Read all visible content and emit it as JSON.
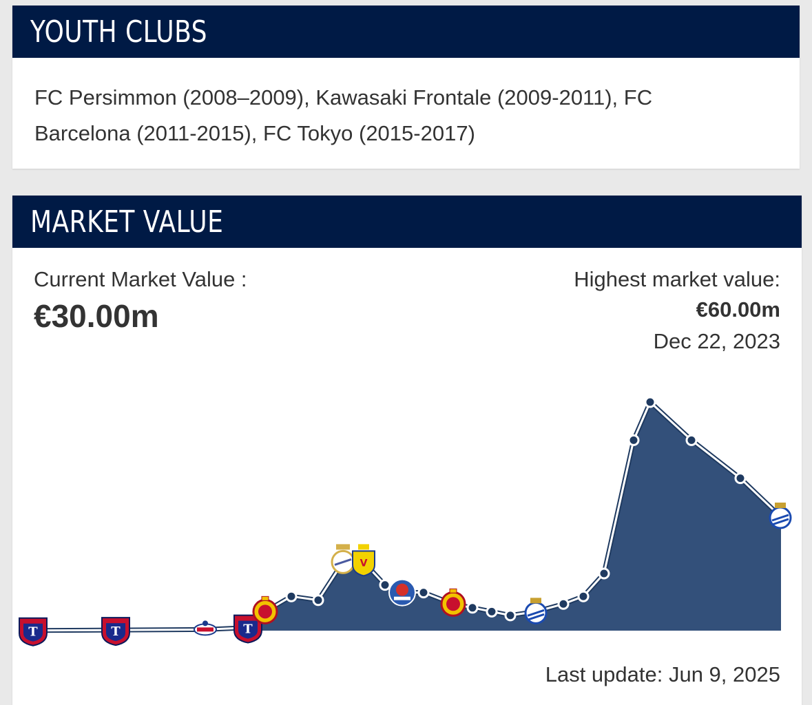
{
  "youth_clubs": {
    "title": "YOUTH CLUBS",
    "text": "FC Persimmon (2008–2009), Kawasaki Frontale (2009-2011), FC Barcelona (2011-2015), FC Tokyo (2015-2017)"
  },
  "market_value": {
    "title": "MARKET VALUE",
    "current_label": "Current Market Value :",
    "current_value": "€30.00m",
    "highest_label": "Highest market value:",
    "highest_value": "€60.00m",
    "highest_date": "Dec 22, 2023",
    "last_update": "Last update: Jun 9, 2025"
  },
  "colors": {
    "header_bg": "#001a45",
    "area_fill": "#33507a",
    "line": "#ffffff",
    "point_fill": "#1f3a60"
  },
  "chart_data": {
    "type": "area",
    "title": "",
    "xlabel": "",
    "ylabel": "",
    "ylim": [
      0,
      60
    ],
    "grid": false,
    "unit": "€m",
    "values": [
      0.05,
      0.15,
      0.3,
      0.8,
      5.0,
      9.0,
      8.0,
      18.0,
      18.0,
      12.0,
      10.0,
      10.0,
      7.0,
      6.0,
      5.0,
      4.0,
      5.0,
      7.0,
      9.0,
      15.0,
      50.0,
      60.0,
      50.0,
      40.0,
      30.0
    ],
    "clubs": [
      "fc-tokyo",
      "fc-tokyo",
      "yokohama-f-marinos",
      "fc-tokyo",
      "rcd-mallorca",
      "",
      "",
      "real-madrid",
      "villarreal",
      "",
      "getafe",
      "",
      "rcd-mallorca",
      "",
      "",
      "",
      "real-sociedad",
      "",
      "",
      "",
      "",
      "",
      "",
      "",
      "real-sociedad"
    ]
  }
}
